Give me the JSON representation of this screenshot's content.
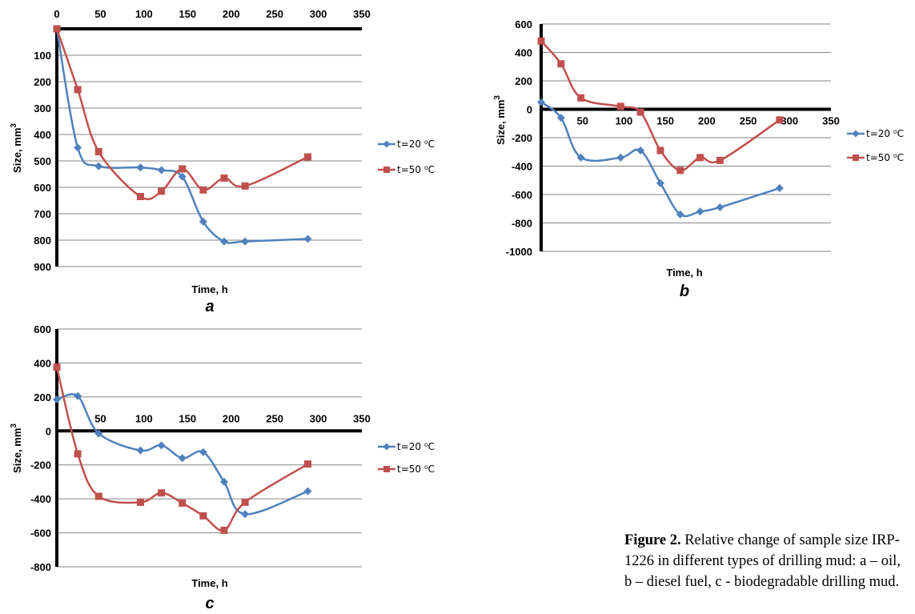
{
  "caption": {
    "label": "Figure 2.",
    "text_line1": " Relative change of sample size IRP-",
    "text_line2": "1226 in different types of drilling mud: a – oil,",
    "text_line3": "b – diesel fuel, c - biodegradable drilling mud."
  },
  "chart_data": [
    {
      "type": "line",
      "panel": "a",
      "xlabel": "Time, h",
      "ylabel": "Size, mm",
      "ylabel_superscript": "3",
      "xlim": [
        0,
        350
      ],
      "ylim": [
        0,
        900
      ],
      "y_inverted": true,
      "x_ticks": [
        "0",
        "50",
        "100",
        "150",
        "200",
        "250",
        "300",
        "350"
      ],
      "y_ticks": [
        "100",
        "200",
        "300",
        "400",
        "500",
        "600",
        "700",
        "800",
        "900"
      ],
      "legend_position": "right",
      "series": [
        {
          "name": "t=20 ⁰C",
          "color": "#4f81bd",
          "marker": "diamond",
          "x": [
            0,
            24,
            48,
            96,
            120,
            144,
            168,
            192,
            216,
            288
          ],
          "y": [
            0,
            450,
            520,
            525,
            535,
            560,
            730,
            805,
            805,
            795
          ]
        },
        {
          "name": "t=50 ⁰C",
          "color": "#c0504d",
          "marker": "square",
          "x": [
            0,
            24,
            48,
            96,
            120,
            144,
            168,
            192,
            216,
            288
          ],
          "y": [
            0,
            230,
            465,
            635,
            615,
            530,
            610,
            565,
            595,
            485
          ]
        }
      ]
    },
    {
      "type": "line",
      "panel": "b",
      "xlabel": "Time, h",
      "ylabel": "Size, mm",
      "ylabel_superscript": "3",
      "xlim": [
        0,
        350
      ],
      "ylim": [
        -1000,
        600
      ],
      "x_ticks": [
        "50",
        "100",
        "150",
        "200",
        "250",
        "300",
        "350"
      ],
      "y_ticks": [
        "600",
        "400",
        "200",
        "0",
        "-200",
        "-400",
        "-600",
        "-800",
        "-1000"
      ],
      "legend_position": "right",
      "series": [
        {
          "name": "t=20 ⁰C",
          "color": "#4f81bd",
          "marker": "diamond",
          "x": [
            0,
            24,
            48,
            96,
            120,
            144,
            168,
            192,
            216,
            288
          ],
          "y": [
            50,
            -60,
            -340,
            -340,
            -290,
            -520,
            -740,
            -720,
            -690,
            -555
          ]
        },
        {
          "name": "t=50 ⁰C",
          "color": "#c0504d",
          "marker": "square",
          "x": [
            0,
            24,
            48,
            96,
            120,
            144,
            168,
            192,
            216,
            288
          ],
          "y": [
            480,
            320,
            80,
            20,
            -20,
            -290,
            -430,
            -340,
            -360,
            -75
          ]
        }
      ]
    },
    {
      "type": "line",
      "panel": "c",
      "xlabel": "Time, h",
      "ylabel": "Size, mm",
      "ylabel_superscript": "3",
      "xlim": [
        0,
        350
      ],
      "ylim": [
        -800,
        600
      ],
      "x_ticks": [
        "50",
        "100",
        "150",
        "200",
        "250",
        "300",
        "350"
      ],
      "y_ticks": [
        "600",
        "400",
        "200",
        "0",
        "-200",
        "-400",
        "-600",
        "-800"
      ],
      "legend_position": "right",
      "series": [
        {
          "name": "t=20 ⁰C",
          "color": "#4f81bd",
          "marker": "diamond",
          "x": [
            0,
            24,
            48,
            96,
            120,
            144,
            168,
            192,
            216,
            288
          ],
          "y": [
            185,
            205,
            -15,
            -115,
            -85,
            -160,
            -125,
            -300,
            -490,
            -355
          ]
        },
        {
          "name": "t=50 ⁰C",
          "color": "#c0504d",
          "marker": "square",
          "x": [
            0,
            24,
            48,
            96,
            120,
            144,
            168,
            192,
            216,
            288
          ],
          "y": [
            375,
            -135,
            -385,
            -420,
            -365,
            -425,
            -500,
            -585,
            -420,
            -195
          ]
        }
      ]
    }
  ]
}
